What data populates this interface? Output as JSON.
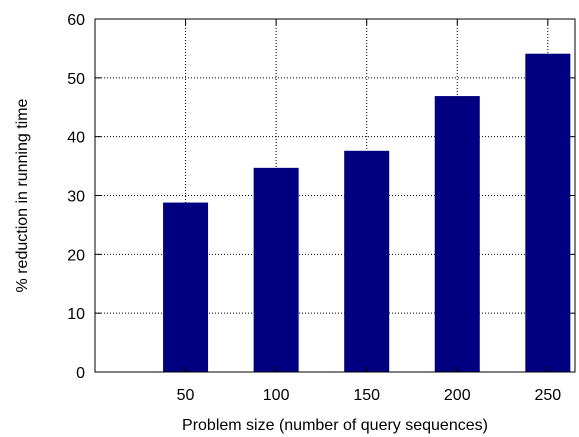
{
  "chart_data": {
    "type": "bar",
    "categories": [
      "50",
      "100",
      "150",
      "200",
      "250"
    ],
    "x": [
      50,
      100,
      150,
      200,
      250
    ],
    "values": [
      28.8,
      34.7,
      37.6,
      46.9,
      54.1
    ],
    "xlabel": "Problem size (number of query sequences)",
    "ylabel": "% reduction in running time",
    "xlim": [
      0,
      265
    ],
    "ylim": [
      0,
      60
    ],
    "yticks": [
      "0",
      "10",
      "20",
      "30",
      "40",
      "50",
      "60"
    ],
    "grid": true,
    "bar_color": "#000080",
    "grid_color": "#000000"
  }
}
